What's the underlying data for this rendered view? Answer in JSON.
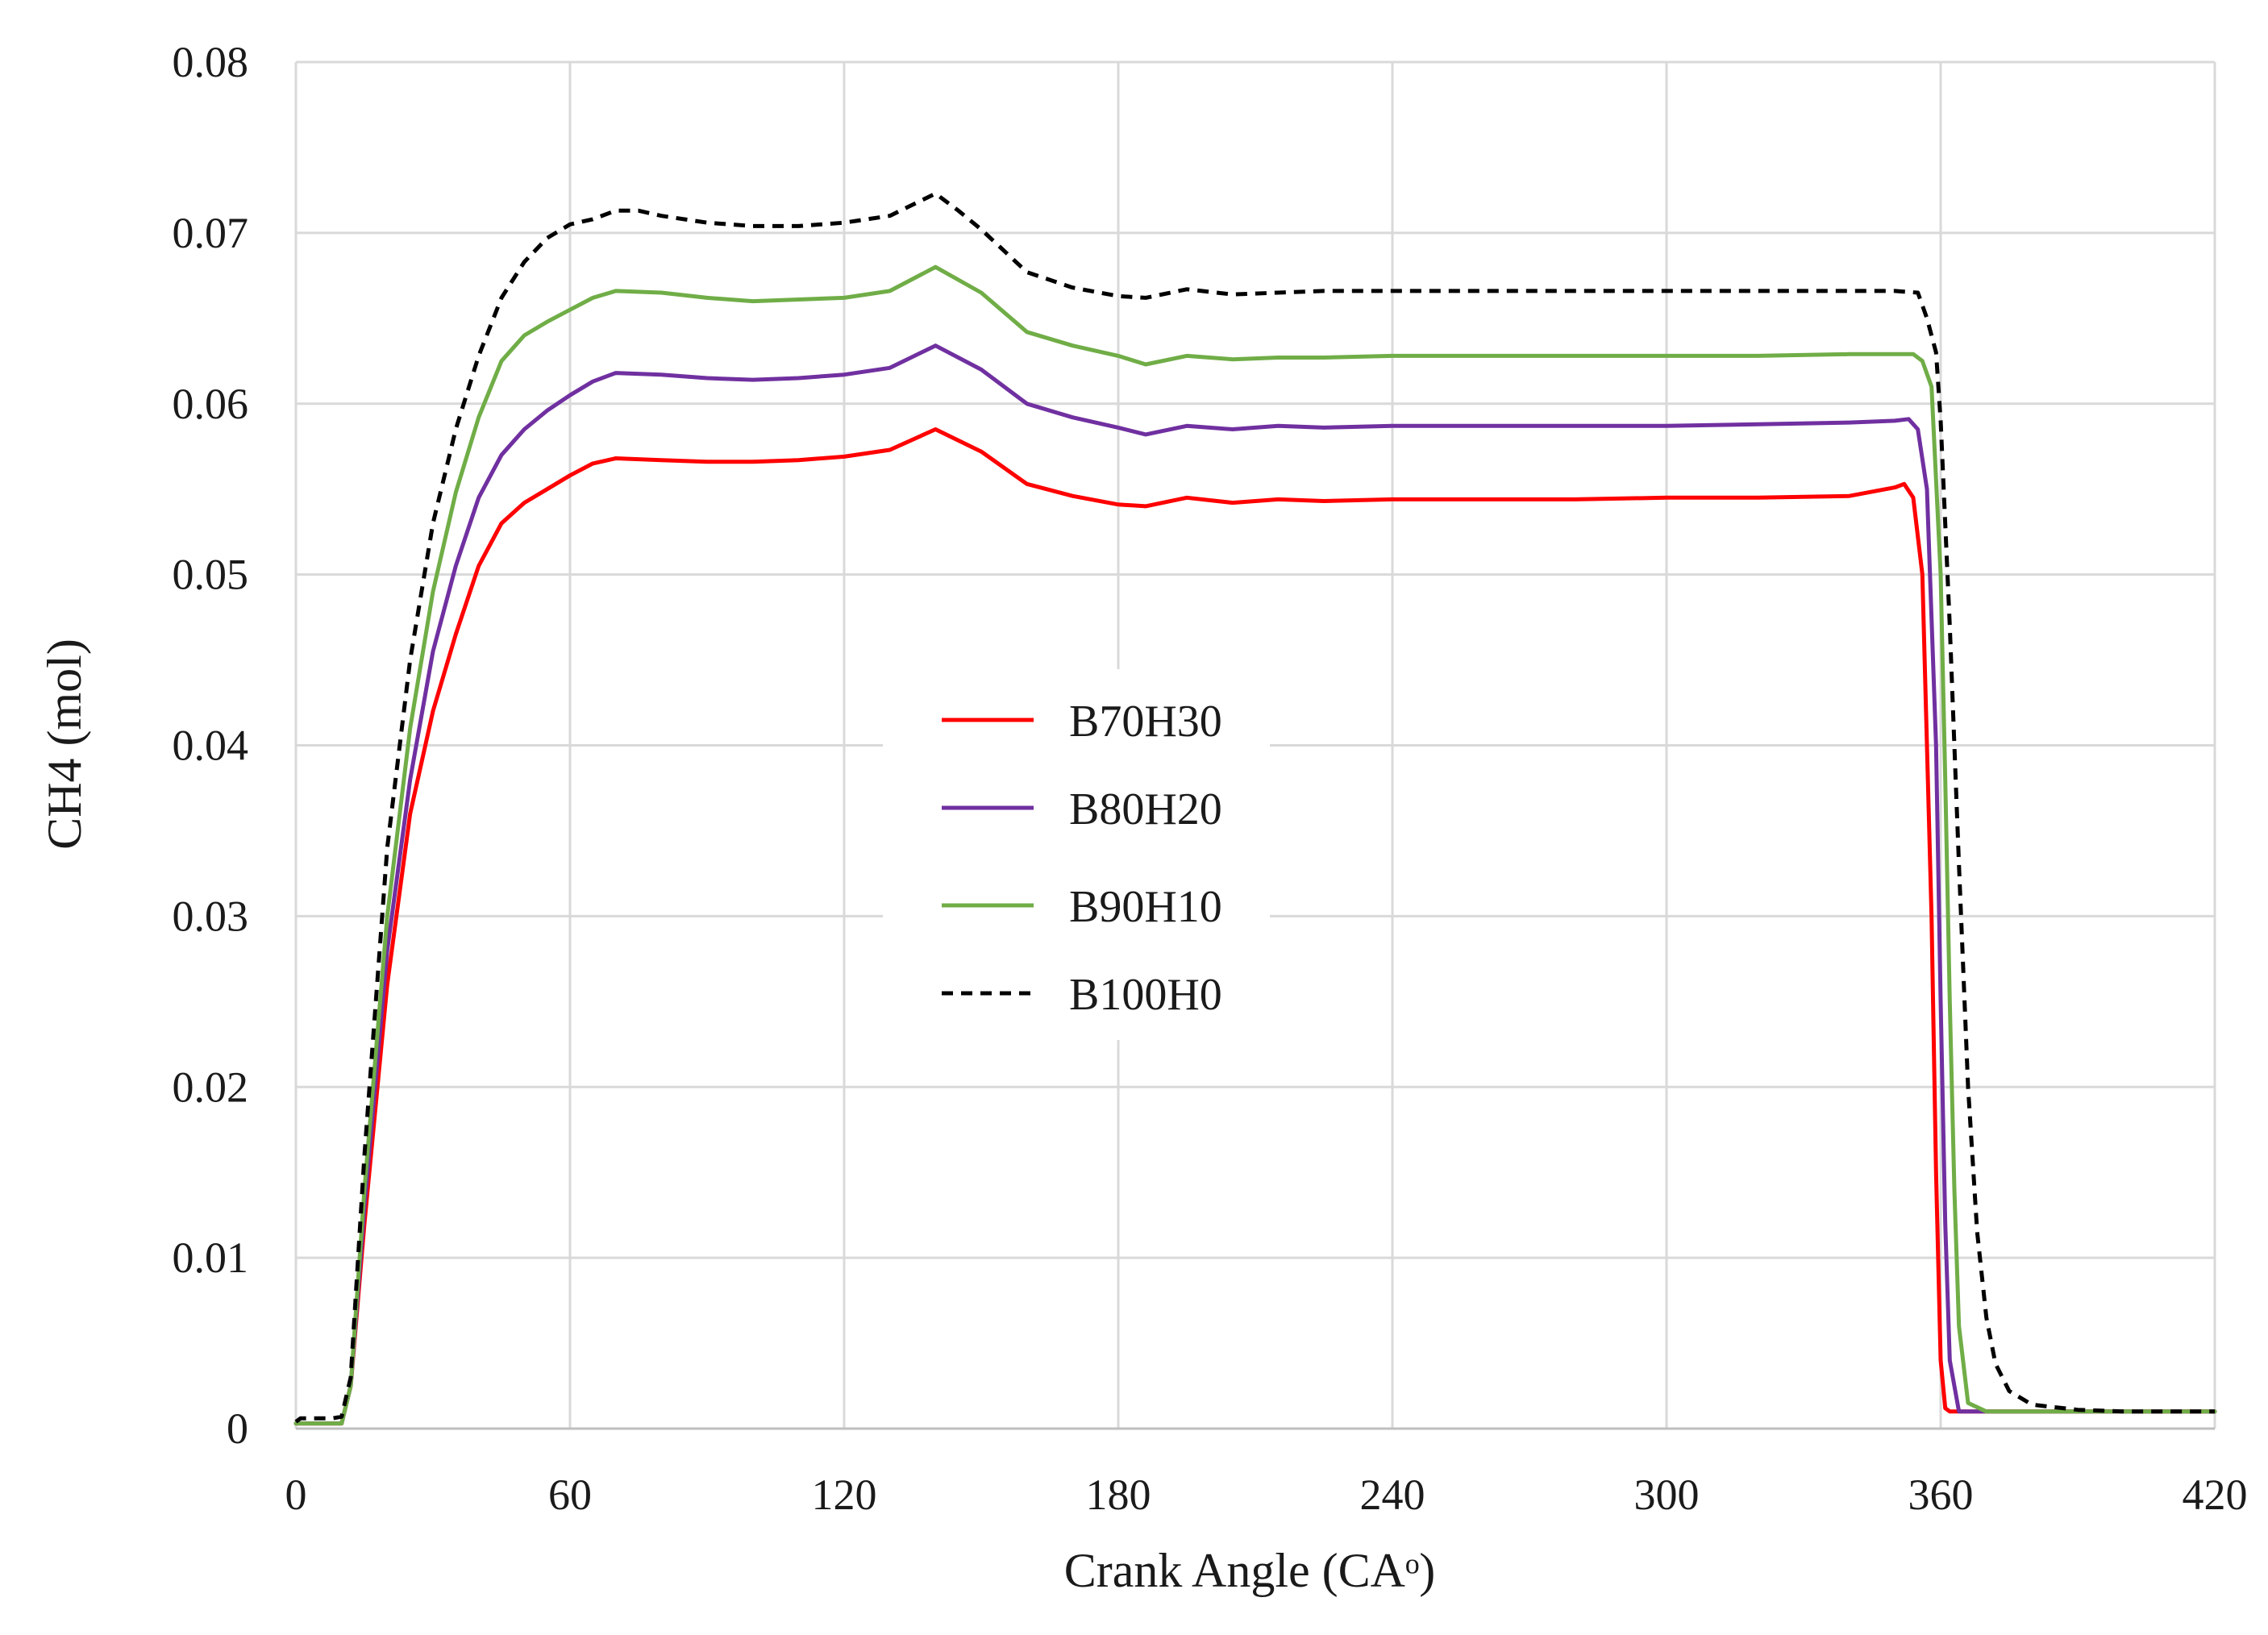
{
  "chart_data": {
    "type": "line",
    "title": "",
    "xlabel": "Crank Angle (CAᵒ)",
    "ylabel": "CH4 (mol)",
    "xlim": [
      0,
      420
    ],
    "ylim": [
      0,
      0.08
    ],
    "xticks": [
      0,
      60,
      120,
      180,
      240,
      300,
      360,
      420
    ],
    "yticks": [
      0,
      0.01,
      0.02,
      0.03,
      0.04,
      0.05,
      0.06,
      0.07,
      0.08
    ],
    "xtick_labels": [
      "0",
      "60",
      "120",
      "180",
      "240",
      "300",
      "360",
      "420"
    ],
    "ytick_labels": [
      "0",
      "0.01",
      "0.02",
      "0.03",
      "0.04",
      "0.05",
      "0.06",
      "0.07",
      "0.08"
    ],
    "grid": true,
    "legend_position": "center",
    "series": [
      {
        "name": "B70H30",
        "color": "#ff0000",
        "dash": "solid",
        "x": [
          0,
          10,
          12,
          15,
          20,
          25,
          30,
          35,
          40,
          45,
          50,
          55,
          60,
          65,
          70,
          80,
          90,
          100,
          110,
          120,
          130,
          140,
          150,
          160,
          170,
          180,
          186,
          195,
          205,
          215,
          225,
          240,
          260,
          280,
          300,
          320,
          340,
          350,
          352,
          354,
          356,
          358,
          359,
          360,
          361,
          362,
          370,
          380,
          400,
          420
        ],
        "values": [
          0.0003,
          0.0003,
          0.0025,
          0.012,
          0.026,
          0.036,
          0.042,
          0.0465,
          0.0505,
          0.053,
          0.0542,
          0.055,
          0.0558,
          0.0565,
          0.0568,
          0.0567,
          0.0566,
          0.0566,
          0.0567,
          0.0569,
          0.0573,
          0.0585,
          0.0572,
          0.0553,
          0.0546,
          0.0541,
          0.054,
          0.0545,
          0.0542,
          0.0544,
          0.0543,
          0.0544,
          0.0544,
          0.0544,
          0.0545,
          0.0545,
          0.0546,
          0.0551,
          0.0553,
          0.0545,
          0.05,
          0.03,
          0.015,
          0.004,
          0.0012,
          0.001,
          0.001,
          0.001,
          0.001,
          0.001
        ]
      },
      {
        "name": "B80H20",
        "color": "#7030a0",
        "dash": "solid",
        "x": [
          0,
          10,
          12,
          15,
          20,
          25,
          30,
          35,
          40,
          45,
          50,
          55,
          60,
          65,
          70,
          80,
          90,
          100,
          110,
          120,
          130,
          140,
          150,
          160,
          170,
          180,
          186,
          195,
          205,
          215,
          225,
          240,
          260,
          280,
          300,
          320,
          340,
          350,
          353,
          355,
          357,
          359,
          360,
          361,
          362,
          364,
          370,
          380,
          400,
          420
        ],
        "values": [
          0.0003,
          0.0003,
          0.0025,
          0.013,
          0.028,
          0.038,
          0.0455,
          0.0505,
          0.0545,
          0.057,
          0.0585,
          0.0596,
          0.0605,
          0.0613,
          0.0618,
          0.0617,
          0.0615,
          0.0614,
          0.0615,
          0.0617,
          0.0621,
          0.0634,
          0.062,
          0.06,
          0.0592,
          0.0586,
          0.0582,
          0.0587,
          0.0585,
          0.0587,
          0.0586,
          0.0587,
          0.0587,
          0.0587,
          0.0587,
          0.0588,
          0.0589,
          0.059,
          0.0591,
          0.0585,
          0.055,
          0.04,
          0.025,
          0.012,
          0.004,
          0.001,
          0.001,
          0.001,
          0.001,
          0.001
        ]
      },
      {
        "name": "B90H10",
        "color": "#70ad47",
        "dash": "solid",
        "x": [
          0,
          10,
          12,
          15,
          20,
          25,
          30,
          35,
          40,
          45,
          50,
          55,
          60,
          65,
          70,
          80,
          90,
          100,
          110,
          120,
          130,
          140,
          150,
          160,
          170,
          180,
          186,
          195,
          205,
          215,
          225,
          240,
          260,
          280,
          300,
          320,
          340,
          350,
          354,
          356,
          358,
          360,
          361,
          362,
          363,
          364,
          366,
          370,
          380,
          400,
          420
        ],
        "values": [
          0.0003,
          0.0003,
          0.0025,
          0.014,
          0.03,
          0.041,
          0.049,
          0.0548,
          0.0592,
          0.0625,
          0.064,
          0.0648,
          0.0655,
          0.0662,
          0.0666,
          0.0665,
          0.0662,
          0.066,
          0.0661,
          0.0662,
          0.0666,
          0.068,
          0.0665,
          0.0642,
          0.0634,
          0.0628,
          0.0623,
          0.0628,
          0.0626,
          0.0627,
          0.0627,
          0.0628,
          0.0628,
          0.0628,
          0.0628,
          0.0628,
          0.0629,
          0.0629,
          0.0629,
          0.0625,
          0.061,
          0.05,
          0.038,
          0.025,
          0.014,
          0.006,
          0.0015,
          0.001,
          0.001,
          0.001,
          0.001
        ]
      },
      {
        "name": "B100H0",
        "color": "#000000",
        "dash": "dashed",
        "x": [
          0,
          1,
          8,
          10,
          12,
          15,
          20,
          25,
          30,
          35,
          40,
          45,
          50,
          55,
          60,
          65,
          70,
          75,
          80,
          90,
          100,
          110,
          120,
          130,
          140,
          145,
          150,
          160,
          170,
          180,
          186,
          195,
          205,
          215,
          225,
          240,
          260,
          280,
          300,
          320,
          340,
          350,
          355,
          357,
          359,
          360,
          362,
          364,
          366,
          368,
          370,
          372,
          375,
          380,
          390,
          400,
          420
        ],
        "values": [
          0.0004,
          0.0006,
          0.0006,
          0.0007,
          0.003,
          0.016,
          0.034,
          0.045,
          0.053,
          0.0585,
          0.0628,
          0.0662,
          0.0683,
          0.0697,
          0.0705,
          0.0708,
          0.0713,
          0.0713,
          0.071,
          0.0706,
          0.0704,
          0.0704,
          0.0706,
          0.071,
          0.0723,
          0.0713,
          0.0702,
          0.0677,
          0.0668,
          0.0663,
          0.0662,
          0.0667,
          0.0664,
          0.0665,
          0.0666,
          0.0666,
          0.0666,
          0.0666,
          0.0666,
          0.0666,
          0.0666,
          0.0666,
          0.0665,
          0.065,
          0.063,
          0.059,
          0.047,
          0.033,
          0.02,
          0.0115,
          0.0065,
          0.0038,
          0.0022,
          0.0014,
          0.0011,
          0.001,
          0.001
        ]
      }
    ]
  }
}
